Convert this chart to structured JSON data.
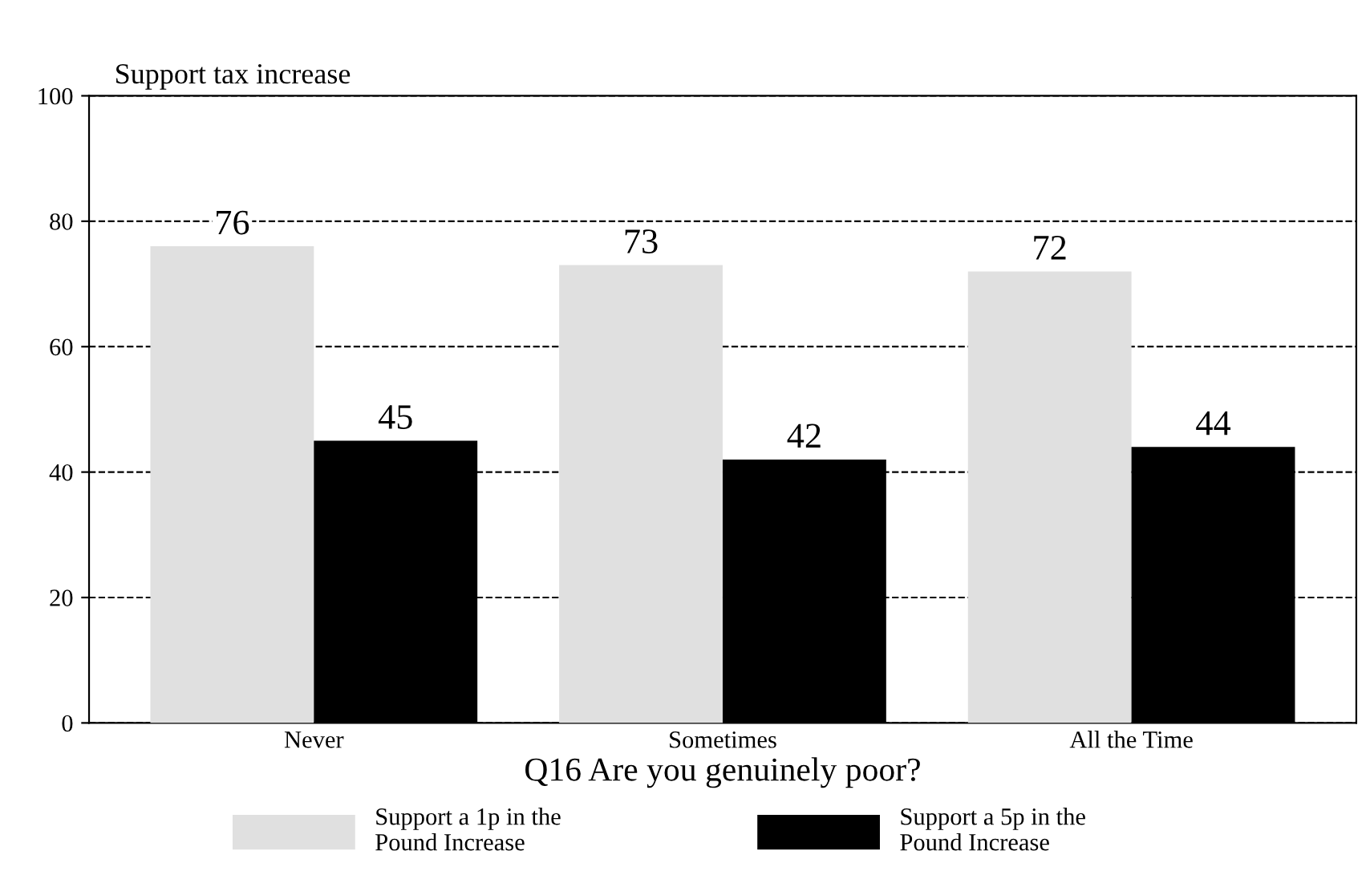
{
  "chart_data": {
    "type": "bar",
    "ylabel": "Support tax increase",
    "xlabel": "Q16 Are you genuinely poor?",
    "categories": [
      "Never",
      "Sometimes",
      "All the Time"
    ],
    "series": [
      {
        "name": "Support a 1p in the\nPound Increase",
        "color": "#e0e0e0",
        "values": [
          76,
          73,
          72
        ]
      },
      {
        "name": "Support a 5p in the\nPound Increase",
        "color": "#000000",
        "values": [
          45,
          42,
          44
        ]
      }
    ],
    "ylim": [
      0,
      100
    ],
    "yticks": [
      0,
      20,
      40,
      60,
      80,
      100
    ],
    "grid": "y",
    "legend": "bottom",
    "data_labels": true
  }
}
